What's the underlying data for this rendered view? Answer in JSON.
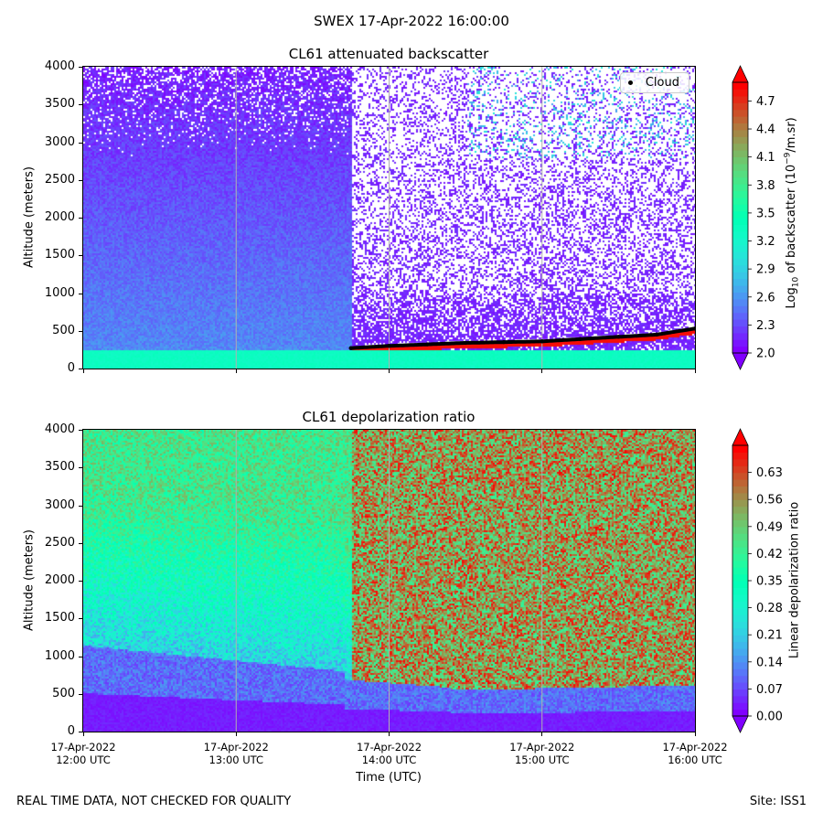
{
  "figure": {
    "suptitle": "SWEX 17-Apr-2022 16:00:00",
    "footer_left": "REAL TIME DATA, NOT CHECKED FOR QUALITY",
    "footer_right": "Site: ISS1",
    "xlabel": "Time (UTC)"
  },
  "chart_data": [
    {
      "type": "heatmap",
      "title": "CL61 attenuated backscatter",
      "ylabel": "Altitude (meters)",
      "xlabel": "",
      "x_range_hours": [
        12,
        16
      ],
      "ylim": [
        0,
        4000
      ],
      "yticks": [
        "0",
        "500",
        "1000",
        "1500",
        "2000",
        "2500",
        "3000",
        "3500",
        "4000"
      ],
      "colorbar": {
        "label_main": "Log",
        "label_sub": "10",
        "label_rest": " of backscatter (10",
        "label_sup": "−9",
        "label_end": "/m.sr)",
        "range": [
          2.0,
          4.9
        ],
        "ticks": [
          "2.0",
          "2.3",
          "2.6",
          "2.9",
          "3.2",
          "3.5",
          "3.8",
          "4.1",
          "4.4",
          "4.7"
        ],
        "colormap": "rainbow"
      },
      "legend": [
        "Cloud"
      ],
      "cloud_base": {
        "start_time_hours": 13.75,
        "end_time_hours": 16.0,
        "x_hours": [
          13.75,
          14.0,
          14.25,
          14.5,
          14.75,
          15.0,
          15.25,
          15.5,
          15.75,
          16.0
        ],
        "altitude_m": [
          270,
          300,
          320,
          340,
          350,
          360,
          390,
          420,
          450,
          530
        ]
      }
    },
    {
      "type": "heatmap",
      "title": "CL61 depolarization ratio",
      "ylabel": "Altitude (meters)",
      "xlabel": "Time (UTC)",
      "x_range_hours": [
        12,
        16
      ],
      "ylim": [
        0,
        4000
      ],
      "yticks": [
        "0",
        "500",
        "1000",
        "1500",
        "2000",
        "2500",
        "3000",
        "3500",
        "4000"
      ],
      "colorbar": {
        "label": "Linear depolarization ratio",
        "range": [
          0.0,
          0.7
        ],
        "ticks": [
          "0.00",
          "0.07",
          "0.14",
          "0.21",
          "0.28",
          "0.35",
          "0.42",
          "0.49",
          "0.56",
          "0.63"
        ],
        "colormap": "rainbow"
      }
    }
  ],
  "xaxis": {
    "ticks": [
      {
        "hours": 12,
        "date": "17-Apr-2022",
        "time": "12:00 UTC"
      },
      {
        "hours": 13,
        "date": "17-Apr-2022",
        "time": "13:00 UTC"
      },
      {
        "hours": 14,
        "date": "17-Apr-2022",
        "time": "14:00 UTC"
      },
      {
        "hours": 15,
        "date": "17-Apr-2022",
        "time": "15:00 UTC"
      },
      {
        "hours": 16,
        "date": "17-Apr-2022",
        "time": "16:00 UTC"
      }
    ]
  }
}
